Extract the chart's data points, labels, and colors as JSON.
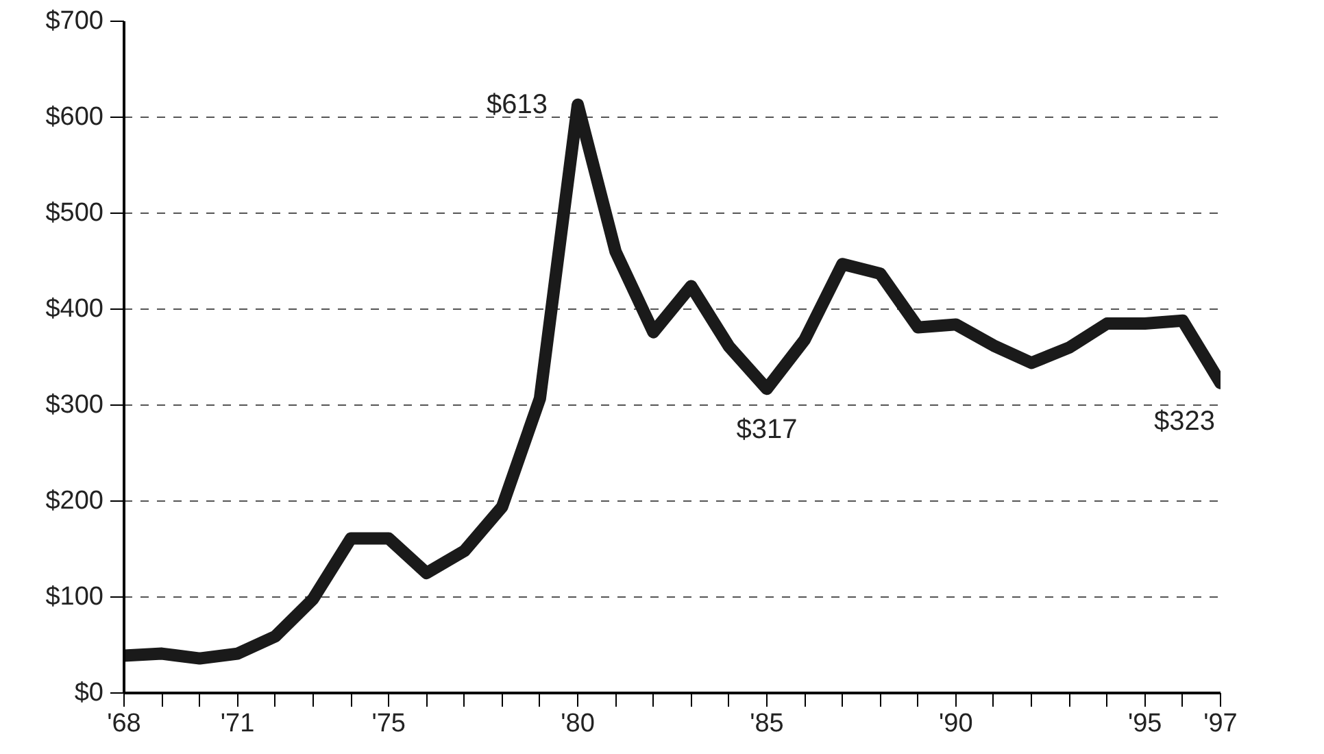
{
  "chart_data": {
    "type": "line",
    "x": [
      1968,
      1969,
      1970,
      1971,
      1972,
      1973,
      1974,
      1975,
      1976,
      1977,
      1978,
      1979,
      1980,
      1981,
      1982,
      1983,
      1984,
      1985,
      1986,
      1987,
      1988,
      1989,
      1990,
      1991,
      1992,
      1993,
      1994,
      1995,
      1996,
      1997
    ],
    "series": [
      {
        "color": "#1a1a1a",
        "values": [
          39,
          41,
          36,
          41,
          59,
          98,
          161,
          161,
          125,
          148,
          194,
          307,
          613,
          460,
          376,
          424,
          361,
          317,
          368,
          447,
          437,
          381,
          384,
          362,
          344,
          360,
          385,
          385,
          388,
          323
        ],
        "value_labels": [
          null,
          null,
          null,
          null,
          null,
          null,
          null,
          null,
          null,
          null,
          null,
          null,
          "$613",
          null,
          null,
          null,
          null,
          "$317",
          null,
          null,
          null,
          null,
          null,
          null,
          null,
          null,
          null,
          null,
          null,
          "$323"
        ]
      }
    ],
    "xlim": [
      1968,
      1997
    ],
    "xticks": [
      {
        "value": 1968,
        "label": "'68"
      },
      {
        "value": 1969,
        "label": null
      },
      {
        "value": 1970,
        "label": null
      },
      {
        "value": 1971,
        "label": "'71"
      },
      {
        "value": 1972,
        "label": null
      },
      {
        "value": 1973,
        "label": null
      },
      {
        "value": 1974,
        "label": null
      },
      {
        "value": 1975,
        "label": "'75"
      },
      {
        "value": 1976,
        "label": null
      },
      {
        "value": 1977,
        "label": null
      },
      {
        "value": 1978,
        "label": null
      },
      {
        "value": 1979,
        "label": null
      },
      {
        "value": 1980,
        "label": "'80"
      },
      {
        "value": 1981,
        "label": null
      },
      {
        "value": 1982,
        "label": null
      },
      {
        "value": 1983,
        "label": null
      },
      {
        "value": 1984,
        "label": null
      },
      {
        "value": 1985,
        "label": "'85"
      },
      {
        "value": 1986,
        "label": null
      },
      {
        "value": 1987,
        "label": null
      },
      {
        "value": 1988,
        "label": null
      },
      {
        "value": 1989,
        "label": null
      },
      {
        "value": 1990,
        "label": "'90"
      },
      {
        "value": 1991,
        "label": null
      },
      {
        "value": 1992,
        "label": null
      },
      {
        "value": 1993,
        "label": null
      },
      {
        "value": 1994,
        "label": null
      },
      {
        "value": 1995,
        "label": "'95"
      },
      {
        "value": 1996,
        "label": null
      },
      {
        "value": 1997,
        "label": "'97"
      }
    ],
    "ylim": [
      0,
      700
    ],
    "yticks": [
      {
        "value": 0,
        "label": "$0"
      },
      {
        "value": 100,
        "label": "$100"
      },
      {
        "value": 200,
        "label": "$200"
      },
      {
        "value": 300,
        "label": "$300"
      },
      {
        "value": 400,
        "label": "$400"
      },
      {
        "value": 500,
        "label": "$500"
      },
      {
        "value": 600,
        "label": "$600"
      },
      {
        "value": 700,
        "label": "$700"
      }
    ],
    "grid": "y",
    "marker": "none",
    "line_style": "solid"
  }
}
